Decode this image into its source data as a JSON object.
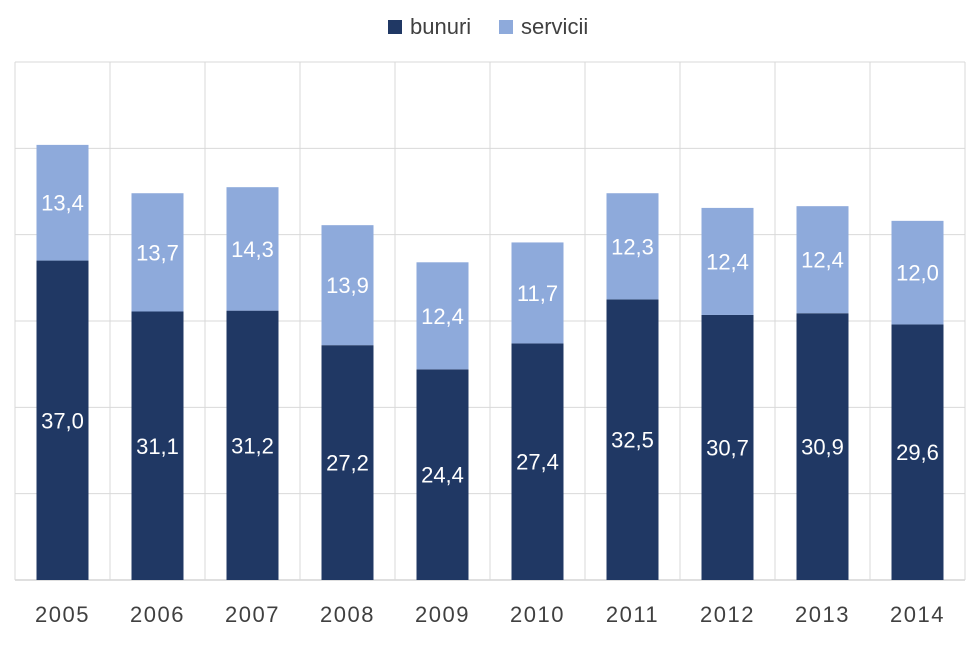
{
  "chart_data": {
    "type": "bar",
    "stacked": true,
    "categories": [
      "2005",
      "2006",
      "2007",
      "2008",
      "2009",
      "2010",
      "2011",
      "2012",
      "2013",
      "2014"
    ],
    "series": [
      {
        "name": "bunuri",
        "color": "#203864",
        "values": [
          37.0,
          31.1,
          31.2,
          27.2,
          24.4,
          27.4,
          32.5,
          30.7,
          30.9,
          29.6
        ],
        "labels": [
          "37,0",
          "31,1",
          "31,2",
          "27,2",
          "24,4",
          "27,4",
          "32,5",
          "30,7",
          "30,9",
          "29,6"
        ]
      },
      {
        "name": "servicii",
        "color": "#8eaadb",
        "values": [
          13.4,
          13.7,
          14.3,
          13.9,
          12.4,
          11.7,
          12.3,
          12.4,
          12.4,
          12.0
        ],
        "labels": [
          "13,4",
          "13,7",
          "14,3",
          "13,9",
          "12,4",
          "11,7",
          "12,3",
          "12,4",
          "12,4",
          "12,0"
        ]
      }
    ],
    "title": "",
    "xlabel": "",
    "ylabel": "",
    "ylim": [
      0,
      60
    ],
    "gridlines": true,
    "vertical_gridlines": true,
    "legend_position": "top-center"
  }
}
